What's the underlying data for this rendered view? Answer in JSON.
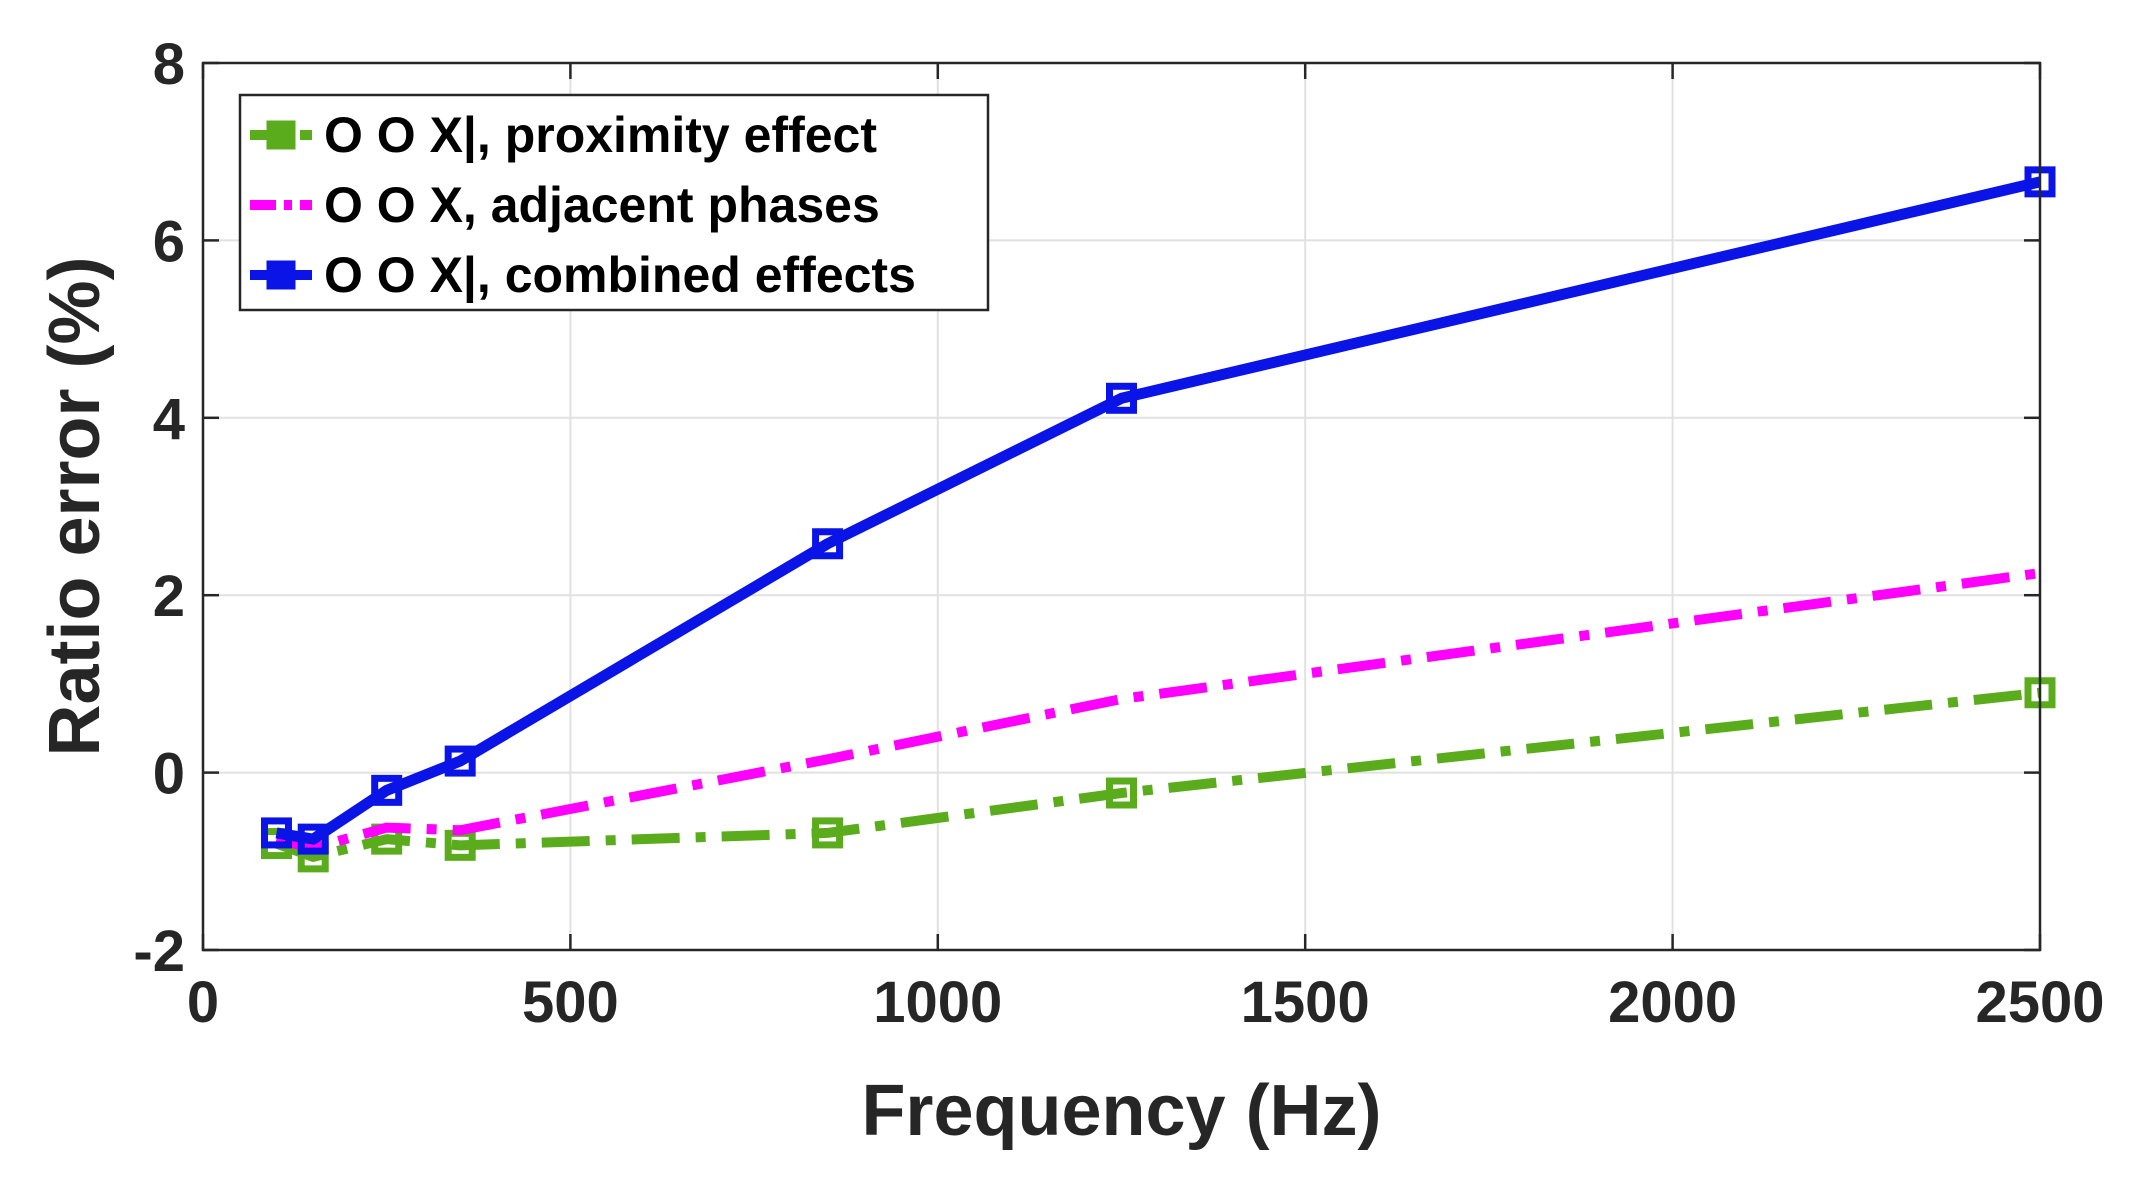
{
  "chart_data": {
    "type": "line",
    "title": "",
    "xlabel": "Frequency (Hz)",
    "ylabel": "Ratio error (%)",
    "xlim": [
      0,
      2500
    ],
    "ylim": [
      -2,
      8
    ],
    "xticks": [
      0,
      500,
      1000,
      1500,
      2000,
      2500
    ],
    "yticks": [
      -2,
      0,
      2,
      4,
      6,
      8
    ],
    "xtick_labels": [
      "0",
      "500",
      "1000",
      "1500",
      "2000",
      "2500"
    ],
    "ytick_labels": [
      "-2",
      "0",
      "2",
      "4",
      "6",
      "8"
    ],
    "grid": true,
    "legend_position": "top-left",
    "series": [
      {
        "name": "O O X|, proximity effect",
        "color": "#5aac1c",
        "line_style": "dash-dot",
        "marker": "square",
        "x": [
          100,
          150,
          250,
          350,
          850,
          1250,
          2500
        ],
        "y": [
          -0.8,
          -0.95,
          -0.75,
          -0.82,
          -0.68,
          -0.23,
          0.9
        ]
      },
      {
        "name": "O O X, adjacent phases",
        "color": "#ff00ff",
        "line_style": "dash-dot",
        "marker": "none",
        "x": [
          100,
          150,
          250,
          350,
          850,
          1250,
          2500
        ],
        "y": [
          -0.75,
          -0.85,
          -0.62,
          -0.65,
          0.15,
          0.83,
          2.25
        ]
      },
      {
        "name": "O O X|, combined effects",
        "color": "#0a14e6",
        "line_style": "solid",
        "marker": "square",
        "x": [
          100,
          150,
          250,
          350,
          850,
          1250,
          2500
        ],
        "y": [
          -0.68,
          -0.75,
          -0.2,
          0.13,
          2.58,
          4.22,
          6.66
        ]
      }
    ]
  }
}
